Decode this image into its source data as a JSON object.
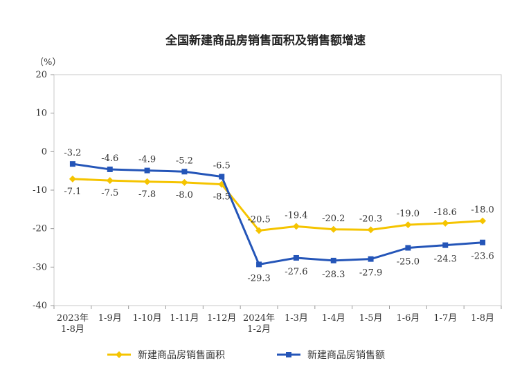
{
  "chart_data": {
    "type": "line",
    "title": "全国新建商品房销售面积及销售额增速",
    "ylabel": "（%）",
    "xlabel": "",
    "ylim": [
      -40,
      20
    ],
    "yticks": [
      "20",
      "10",
      "0",
      "-10",
      "-20",
      "-30",
      "-40"
    ],
    "ytick_values": [
      20,
      10,
      0,
      -10,
      -20,
      -30,
      -40
    ],
    "categories": [
      [
        "2023年",
        "1-8月"
      ],
      [
        "1-9月"
      ],
      [
        "1-10月"
      ],
      [
        "1-11月"
      ],
      [
        "1-12月"
      ],
      [
        "2024年",
        "1-2月"
      ],
      [
        "1-3月"
      ],
      [
        "1-4月"
      ],
      [
        "1-5月"
      ],
      [
        "1-6月"
      ],
      [
        "1-7月"
      ],
      [
        "1-8月"
      ]
    ],
    "grid": false,
    "legend_position": "bottom",
    "series": [
      {
        "name": "新建商品房销售面积",
        "color": "#F5C400",
        "marker": "diamond",
        "values": [
          -7.1,
          -7.5,
          -7.8,
          -8.0,
          -8.5,
          -20.5,
          -19.4,
          -20.2,
          -20.3,
          -19.0,
          -18.6,
          -18.0
        ],
        "labels": [
          "-7.1",
          "-7.5",
          "-7.8",
          "-8.0",
          "-8.5",
          "-20.5",
          "-19.4",
          "-20.2",
          "-20.3",
          "-19.0",
          "-18.6",
          "-18.0"
        ]
      },
      {
        "name": "新建商品房销售额",
        "color": "#2455B8",
        "marker": "square",
        "values": [
          -3.2,
          -4.6,
          -4.9,
          -5.2,
          -6.5,
          -29.3,
          -27.6,
          -28.3,
          -27.9,
          -25.0,
          -24.3,
          -23.6
        ],
        "labels": [
          "-3.2",
          "-4.6",
          "-4.9",
          "-5.2",
          "-6.5",
          "-29.3",
          "-27.6",
          "-28.3",
          "-27.9",
          "-25.0",
          "-24.3",
          "-23.6"
        ]
      }
    ]
  }
}
